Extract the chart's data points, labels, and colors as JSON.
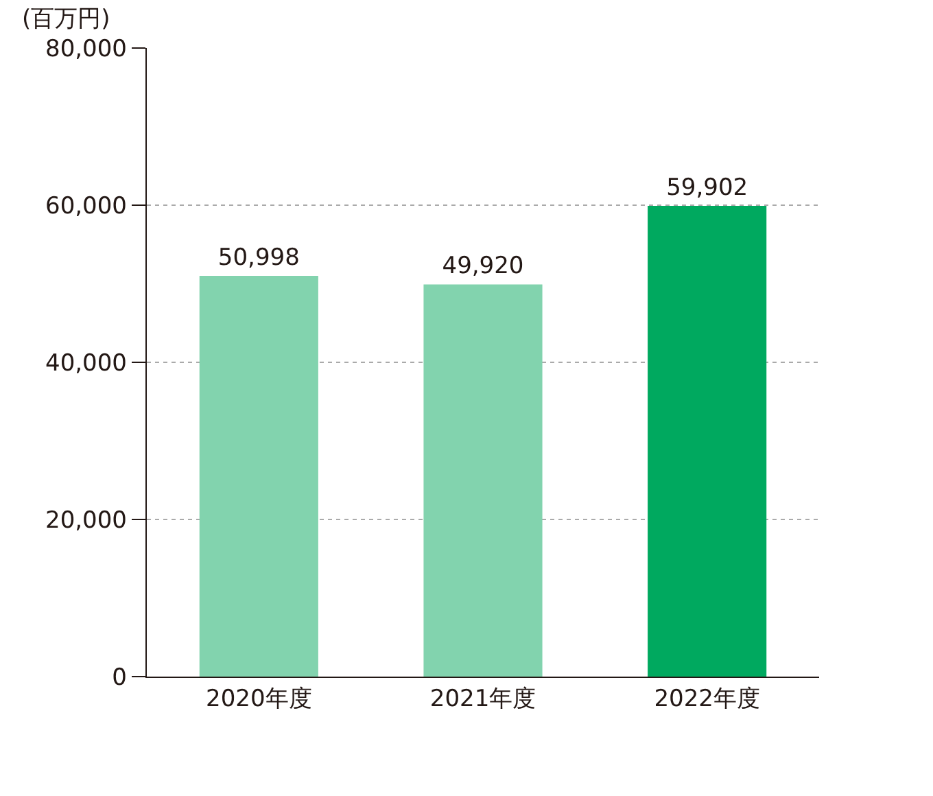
{
  "chart_data": {
    "type": "bar",
    "ylabel": "(百万円)",
    "categories": [
      "2020年度",
      "2021年度",
      "2022年度"
    ],
    "values": [
      50998,
      49920,
      59902
    ],
    "colors": [
      "#82d3ae",
      "#82d3ae",
      "#00a95f"
    ],
    "ylim": [
      0,
      80000
    ],
    "yticks": [
      {
        "value": 0,
        "label": "0"
      },
      {
        "value": 20000,
        "label": "20,000"
      },
      {
        "value": 40000,
        "label": "40,000"
      },
      {
        "value": 60000,
        "label": "60,000"
      },
      {
        "value": 80000,
        "label": "80,000"
      }
    ],
    "value_labels": [
      "50,998",
      "49,920",
      "59,902"
    ],
    "grid": "y"
  }
}
